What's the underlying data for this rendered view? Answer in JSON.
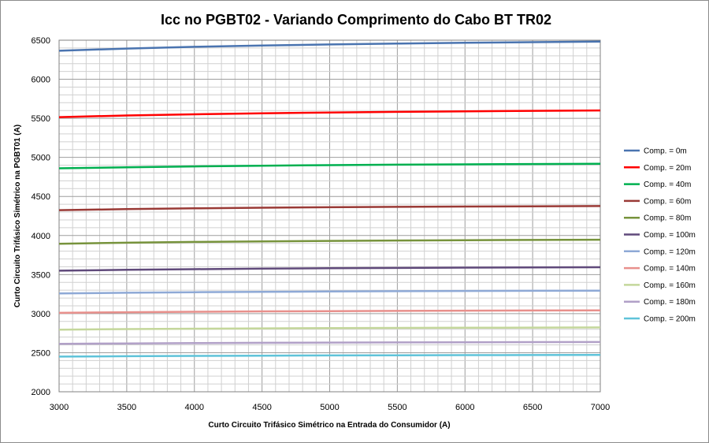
{
  "chart_data": {
    "type": "line",
    "title": "Icc no PGBT02 - Variando Comprimento do Cabo BT TR02",
    "xlabel": "Curto Circuito  Trifásico  Simétrico na Entrada do Consumidor (A)",
    "ylabel": "Curto Circuito Trifásico Simétrico na PGBT01 (A)",
    "xlim": [
      3000,
      7000
    ],
    "ylim": [
      2000,
      6500
    ],
    "x_ticks": [
      3000,
      3500,
      4000,
      4500,
      5000,
      5500,
      6000,
      6500,
      7000
    ],
    "y_ticks": [
      2000,
      2500,
      3000,
      3500,
      4000,
      4500,
      5000,
      5500,
      6000,
      6500
    ],
    "grid": true,
    "legend_position": "right",
    "x": [
      3000,
      3500,
      4000,
      4500,
      5000,
      5500,
      6000,
      6500,
      7000
    ],
    "series": [
      {
        "name": "Comp. = 0m",
        "color": "#4a74b0",
        "values": [
          6365,
          6393,
          6415,
          6432,
          6446,
          6457,
          6467,
          6475,
          6482
        ]
      },
      {
        "name": "Comp. = 20m",
        "color": "#ff0000",
        "values": [
          5515,
          5536,
          5552,
          5565,
          5575,
          5583,
          5590,
          5596,
          5601
        ]
      },
      {
        "name": "Comp. = 40m",
        "color": "#00b050",
        "values": [
          4860,
          4874,
          4885,
          4894,
          4901,
          4907,
          4911,
          4915,
          4918
        ]
      },
      {
        "name": "Comp. = 60m",
        "color": "#9a3a36",
        "values": [
          4325,
          4338,
          4348,
          4356,
          4362,
          4367,
          4371,
          4374,
          4377
        ]
      },
      {
        "name": "Comp. = 80m",
        "color": "#77933c",
        "values": [
          3895,
          3908,
          3918,
          3925,
          3931,
          3936,
          3940,
          3943,
          3946
        ]
      },
      {
        "name": "Comp. = 100m",
        "color": "#604a7b",
        "values": [
          3550,
          3561,
          3569,
          3576,
          3581,
          3585,
          3589,
          3592,
          3594
        ]
      },
      {
        "name": "Comp. = 120m",
        "color": "#8ea9d6",
        "values": [
          3258,
          3267,
          3274,
          3279,
          3283,
          3287,
          3290,
          3292,
          3294
        ]
      },
      {
        "name": "Comp. = 140m",
        "color": "#e8908c",
        "values": [
          3010,
          3018,
          3024,
          3029,
          3032,
          3035,
          3038,
          3040,
          3042
        ]
      },
      {
        "name": "Comp. = 160m",
        "color": "#c4d79b",
        "values": [
          2795,
          2802,
          2807,
          2811,
          2814,
          2817,
          2819,
          2821,
          2823
        ]
      },
      {
        "name": "Comp. = 180m",
        "color": "#b1a0c7",
        "values": [
          2613,
          2619,
          2623,
          2627,
          2630,
          2632,
          2634,
          2636,
          2637
        ]
      },
      {
        "name": "Comp. = 200m",
        "color": "#5fc3d9",
        "values": [
          2450,
          2455,
          2459,
          2462,
          2465,
          2467,
          2469,
          2470,
          2472
        ]
      }
    ]
  }
}
